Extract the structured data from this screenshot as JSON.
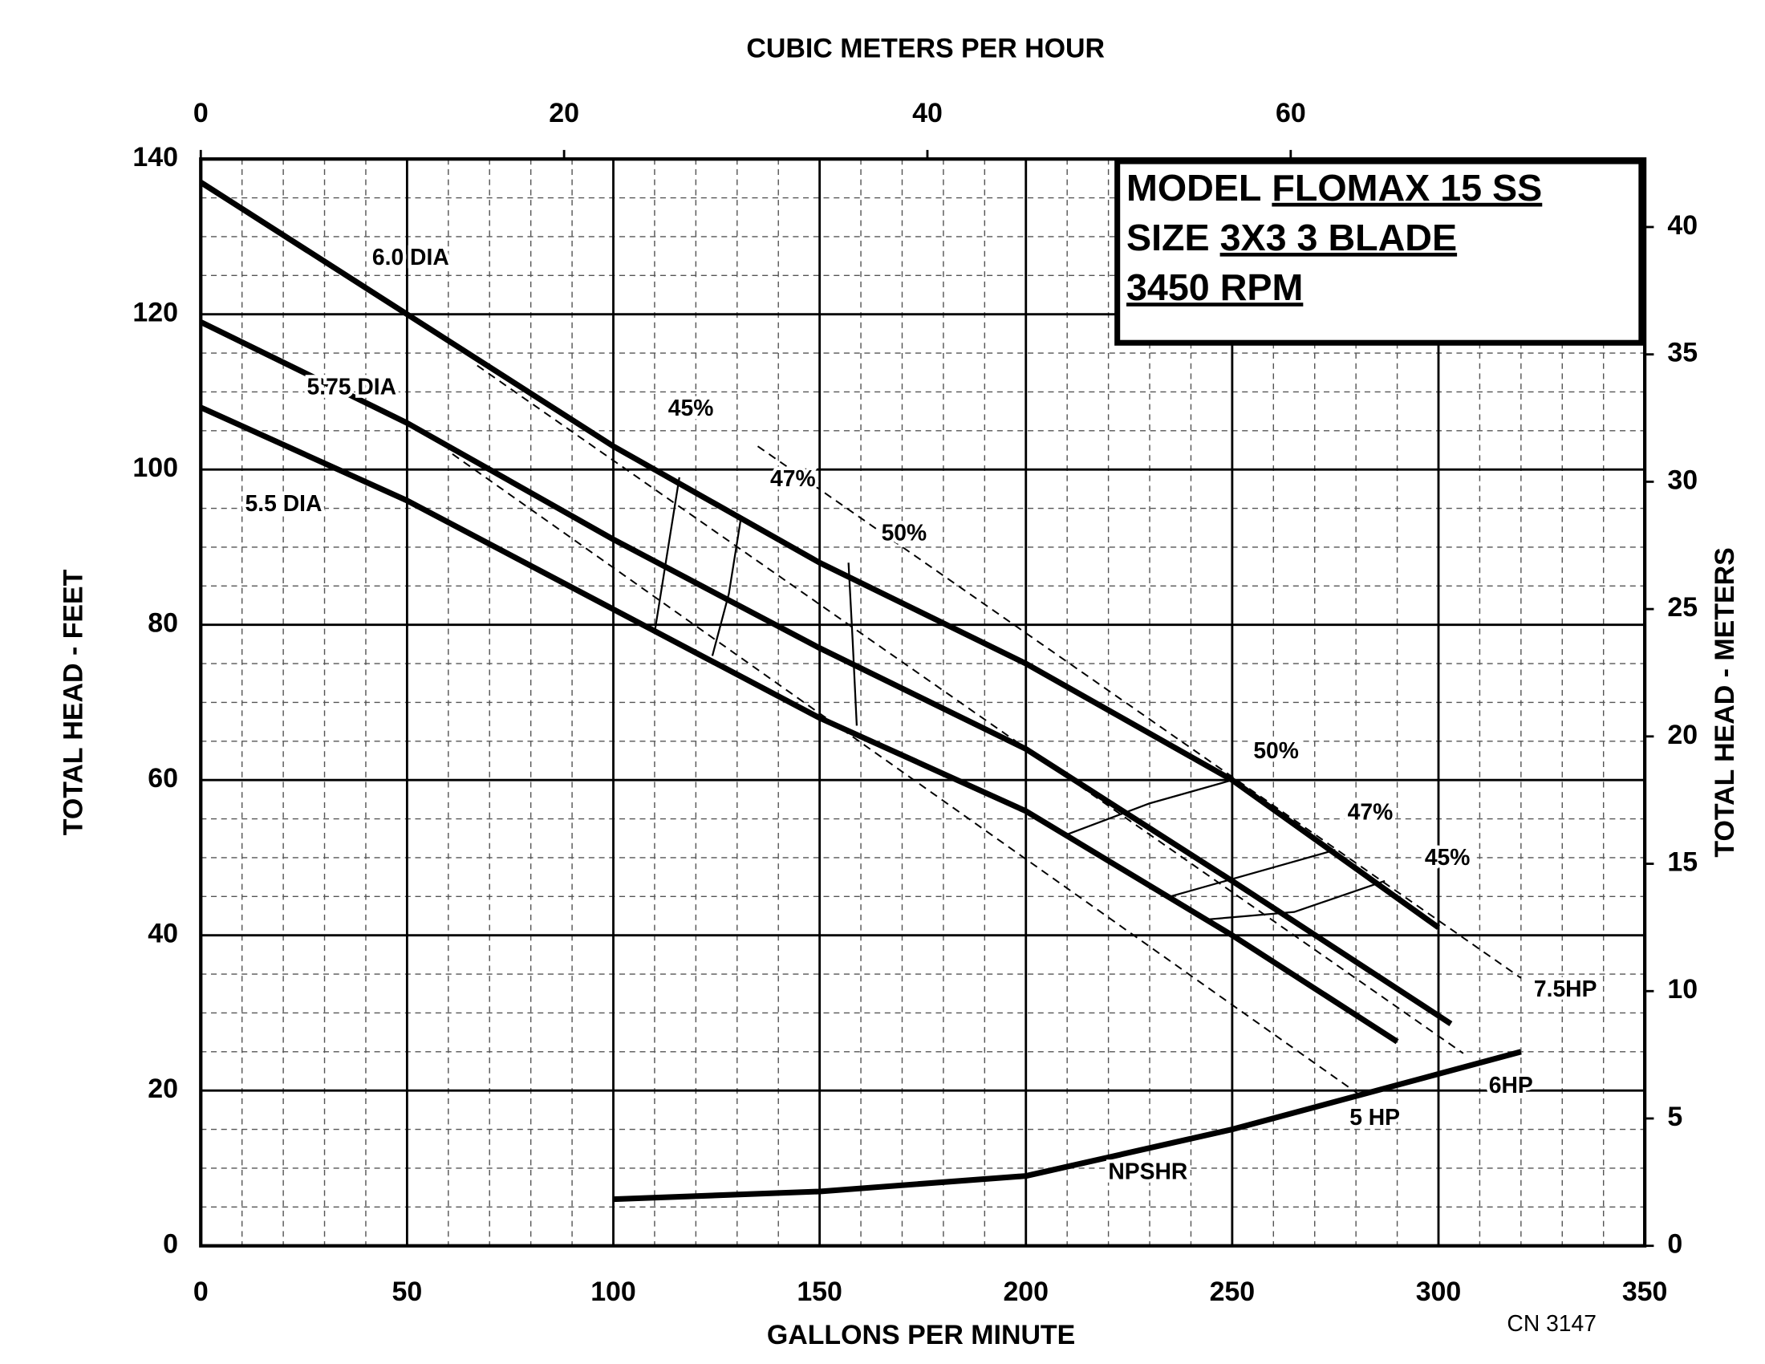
{
  "chart_data": {
    "type": "line",
    "xlabel": "GALLONS PER MINUTE",
    "ylabel": "TOTAL HEAD - FEET",
    "x2label": "CUBIC METERS PER HOUR",
    "y2label": "TOTAL HEAD - METERS",
    "xlim": [
      0,
      350
    ],
    "xticks": [
      0,
      50,
      100,
      150,
      200,
      250,
      300,
      350
    ],
    "ylim": [
      0,
      140
    ],
    "yticks": [
      0,
      20,
      40,
      60,
      80,
      100,
      120,
      140
    ],
    "x2lim": [
      0,
      79.49
    ],
    "x2ticks": [
      0,
      20,
      40,
      60
    ],
    "y2lim": [
      0,
      42.67
    ],
    "y2ticks": [
      0,
      5,
      10,
      15,
      20,
      25,
      30,
      35,
      40
    ],
    "grid": true,
    "minor_grid": {
      "x": 10,
      "y": 5
    },
    "info_box": [
      {
        "label": "MODEL",
        "value": "FLOMAX 15 SS"
      },
      {
        "label": "SIZE",
        "value": "3X3 3 BLADE"
      },
      {
        "value": "3450 RPM"
      }
    ],
    "note": "CN 3147",
    "series": [
      {
        "name": "6.0 DIA",
        "style": "thick",
        "color": "#000",
        "x": [
          0,
          50,
          100,
          150,
          200,
          250,
          300
        ],
        "values": [
          137,
          120,
          103,
          88,
          75,
          60,
          41
        ]
      },
      {
        "name": "5.75 DIA",
        "style": "thick",
        "color": "#000",
        "x": [
          0,
          50,
          100,
          150,
          200,
          250,
          303
        ],
        "values": [
          119,
          106,
          91,
          77,
          64,
          47,
          28.6
        ]
      },
      {
        "name": "5.5 DIA",
        "style": "thick",
        "color": "#000",
        "x": [
          0,
          50,
          100,
          150,
          200,
          250,
          290
        ],
        "values": [
          108,
          96,
          82,
          68,
          56,
          40,
          26.3
        ]
      },
      {
        "name": "NPSHR",
        "style": "thick",
        "color": "#000",
        "x": [
          100,
          150,
          200,
          250,
          320
        ],
        "values": [
          6,
          7,
          9,
          15,
          25
        ]
      },
      {
        "name": "7.5HP",
        "style": "dashed",
        "color": "#000",
        "x": [
          135,
          320
        ],
        "values": [
          103,
          34.5
        ]
      },
      {
        "name": "6HP",
        "style": "dashed",
        "color": "#000",
        "x": [
          67,
          306
        ],
        "values": [
          113.4,
          24.8
        ]
      },
      {
        "name": "5 HP",
        "style": "dashed",
        "color": "#000",
        "x": [
          61,
          281
        ],
        "values": [
          102,
          19.4
        ]
      },
      {
        "name": "45%",
        "style": "thin",
        "color": "#000",
        "x": [
          116,
          113,
          110,
          null,
          287,
          265,
          243
        ],
        "values": [
          99,
          89,
          79,
          null,
          47,
          43,
          42
        ]
      },
      {
        "name": "47%",
        "style": "thin",
        "color": "#000",
        "x": [
          131,
          128,
          124,
          null,
          275,
          255,
          235
        ],
        "values": [
          94,
          84,
          76,
          null,
          51,
          48,
          45
        ]
      },
      {
        "name": "50%",
        "style": "thin",
        "color": "#000",
        "x": [
          157,
          158,
          159,
          null,
          250,
          230,
          210
        ],
        "values": [
          88,
          78,
          67,
          null,
          60,
          57,
          53
        ]
      }
    ]
  }
}
